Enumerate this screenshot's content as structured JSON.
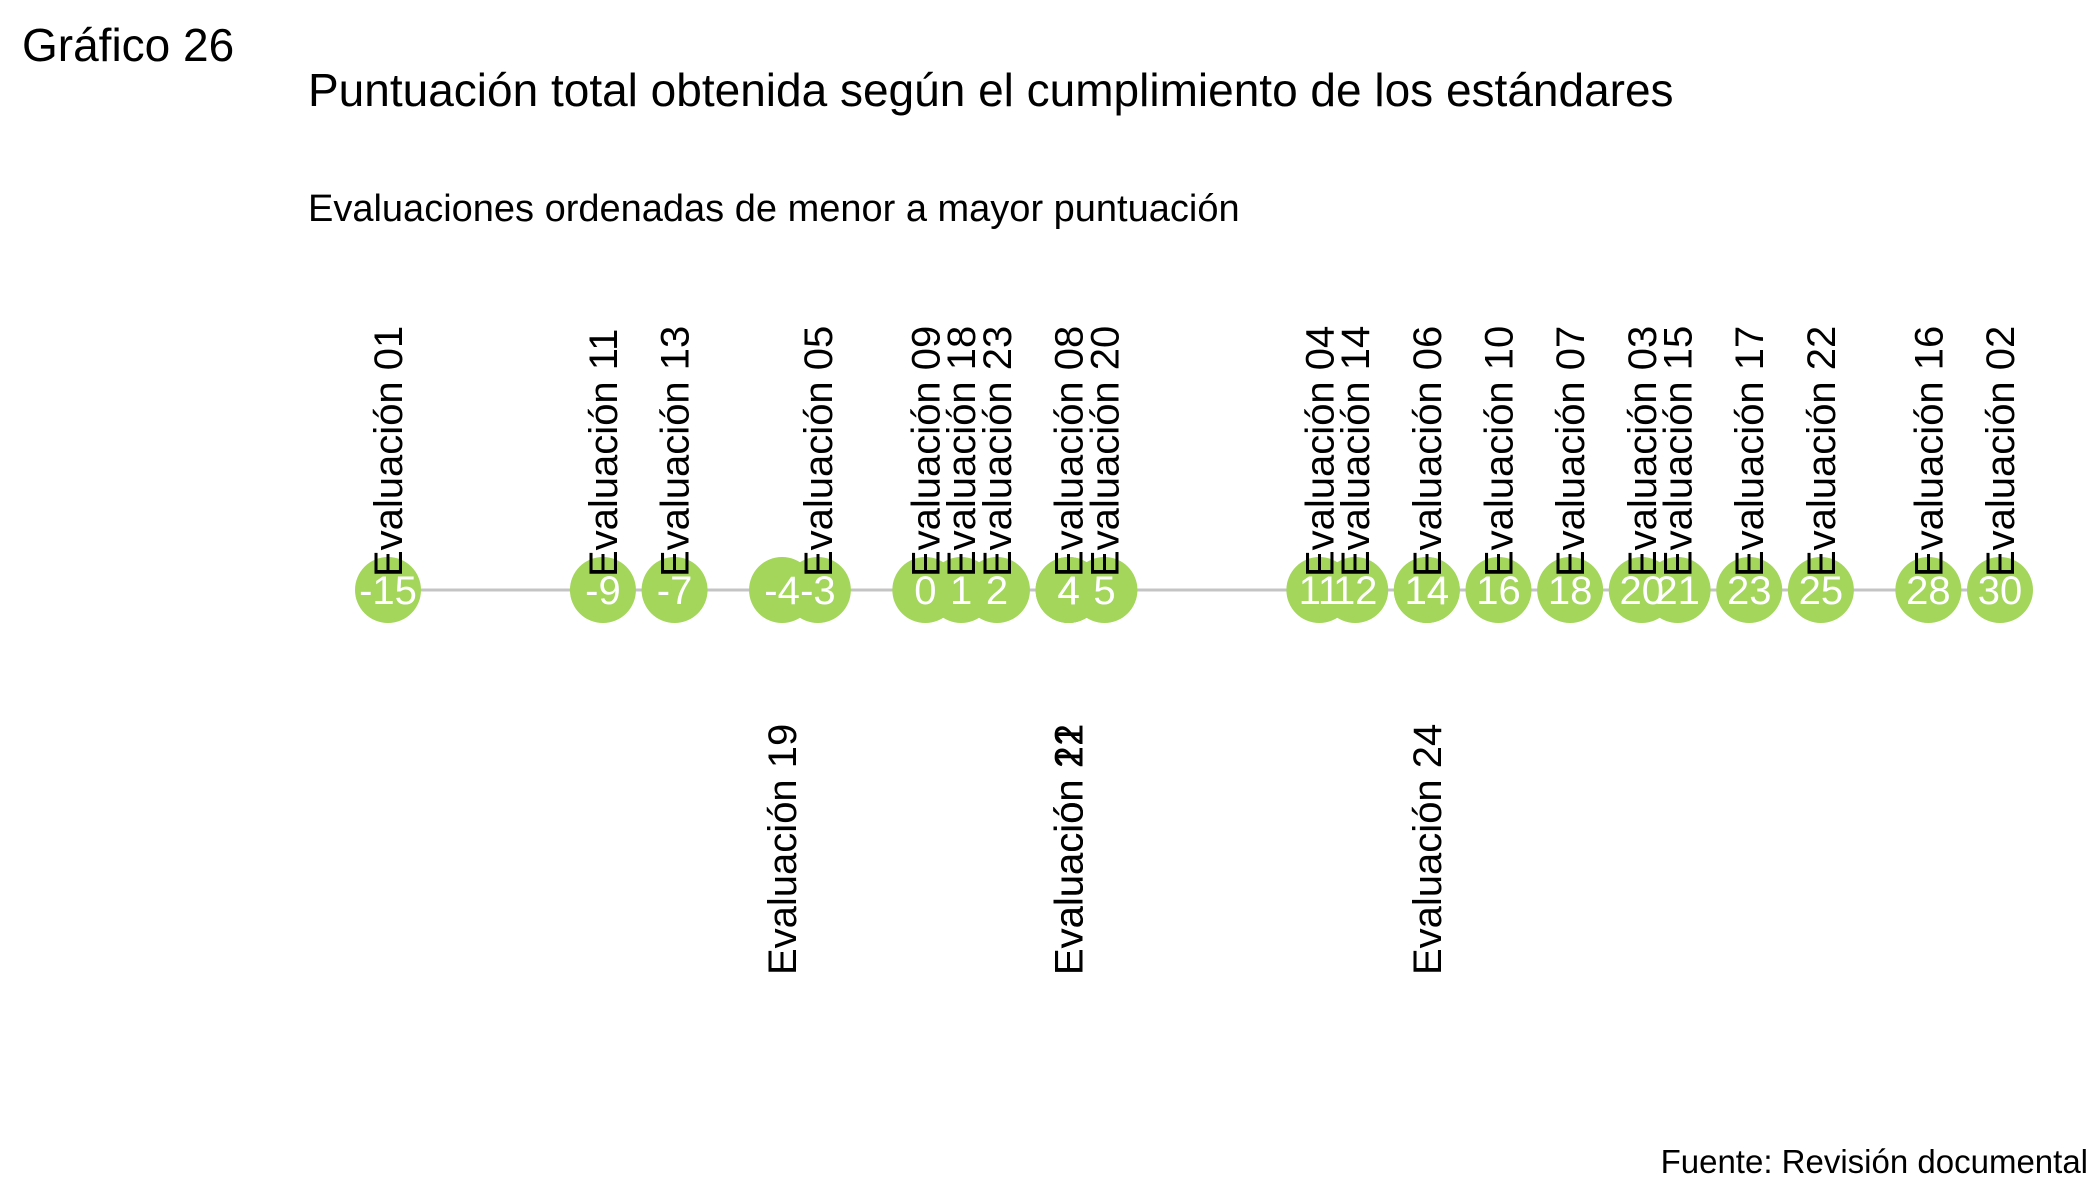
{
  "figure_label": "Gráfico 26",
  "title": "Puntuación total obtenida según el cumplimiento de los estándares",
  "subtitle": "Evaluaciones ordenadas de menor a mayor puntuación",
  "source": "Fuente: Revisión documental",
  "colors": {
    "point": "#a3d65b",
    "line": "#c4c4c4",
    "value_text": "#ffffff",
    "label_text": "#000000"
  },
  "chart_data": {
    "type": "scatter",
    "title": "Puntuación total obtenida según el cumplimiento de los estándares",
    "subtitle": "Evaluaciones ordenadas de menor a mayor puntuación",
    "xlabel": "",
    "ylabel": "",
    "xlim": [
      -15,
      30
    ],
    "grid": false,
    "legend": "none",
    "points": [
      {
        "name": "Evaluación 01",
        "score": -15,
        "label": "-15",
        "side": "above"
      },
      {
        "name": "Evaluación 11",
        "score": -9,
        "label": "-9",
        "side": "above"
      },
      {
        "name": "Evaluación 13",
        "score": -7,
        "label": "-7",
        "side": "above"
      },
      {
        "name": "Evaluación 19",
        "score": -4,
        "label": "-4",
        "side": "below"
      },
      {
        "name": "Evaluación 05",
        "score": -3,
        "label": "-3",
        "side": "above"
      },
      {
        "name": "Evaluación 09",
        "score": 0,
        "label": "0",
        "side": "above"
      },
      {
        "name": "Evaluación 18",
        "score": 1,
        "label": "1",
        "side": "above"
      },
      {
        "name": "Evaluación 23",
        "score": 2,
        "label": "2",
        "side": "above"
      },
      {
        "name": "Evaluación 12",
        "score": 4,
        "label": "4",
        "side": "below"
      },
      {
        "name": "Evaluación 08",
        "score": 4,
        "label": "4",
        "side": "above"
      },
      {
        "name": "Evaluación 21",
        "score": 4,
        "label": "4",
        "side": "below"
      },
      {
        "name": "Evaluación 20",
        "score": 5,
        "label": "5",
        "side": "above"
      },
      {
        "name": "Evaluación 04",
        "score": 11,
        "label": "11",
        "side": "above"
      },
      {
        "name": "Evaluación 14",
        "score": 12,
        "label": "12",
        "side": "above"
      },
      {
        "name": "Evaluación 24",
        "score": 14,
        "label": "14",
        "side": "below"
      },
      {
        "name": "Evaluación 06",
        "score": 14,
        "label": "14",
        "side": "above"
      },
      {
        "name": "Evaluación 10",
        "score": 16,
        "label": "16",
        "side": "above"
      },
      {
        "name": "Evaluación 07",
        "score": 18,
        "label": "18",
        "side": "above"
      },
      {
        "name": "Evaluación 03",
        "score": 20,
        "label": "20",
        "side": "above"
      },
      {
        "name": "Evaluación 15",
        "score": 21,
        "label": "21",
        "side": "above"
      },
      {
        "name": "Evaluación 17",
        "score": 23,
        "label": "23",
        "side": "above"
      },
      {
        "name": "Evaluación 22",
        "score": 25,
        "label": "25",
        "side": "above"
      },
      {
        "name": "Evaluación 16",
        "score": 28,
        "label": "28",
        "side": "above"
      },
      {
        "name": "Evaluación 02",
        "score": 30,
        "label": "30",
        "side": "above"
      }
    ]
  }
}
